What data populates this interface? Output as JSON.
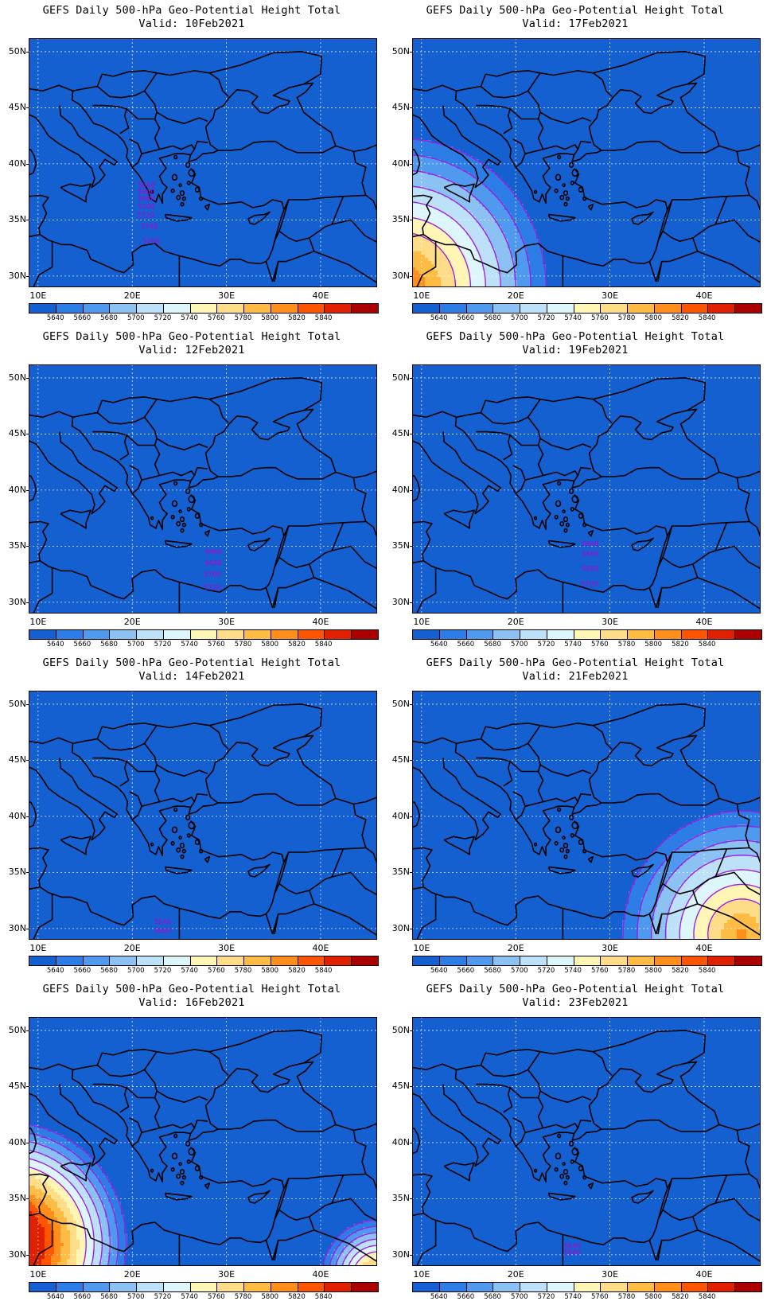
{
  "product_title": "GEFS Daily 500-hPa Geo-Potential Height Total",
  "valid_prefix": "Valid:",
  "panels": [
    {
      "id": "p1",
      "valid_date": "10Feb2021",
      "kind": "shifted",
      "params": {
        "a": 160,
        "b": 3.2,
        "c": 0.5,
        "ch": -160,
        "start": 5640,
        "step": 20,
        "count": 10
      },
      "contour_labels": [
        {
          "text": "5640",
          "x": 21.5,
          "y": 37.9
        },
        {
          "text": "5660",
          "x": 21.5,
          "y": 37.3
        },
        {
          "text": "5680",
          "x": 21.5,
          "y": 36.7
        },
        {
          "text": "5700",
          "x": 21.5,
          "y": 36.0
        },
        {
          "text": "5720",
          "x": 21.4,
          "y": 35.2
        },
        {
          "text": "5740",
          "x": 21.8,
          "y": 34.2
        },
        {
          "text": "5760",
          "x": 22.0,
          "y": 32.9
        }
      ]
    },
    {
      "id": "p2",
      "valid_date": "17Feb2021",
      "kind": "radial",
      "params": {
        "cx": 8,
        "cy": 29,
        "r0": 13.6,
        "dr": 1.6,
        "start": 5640,
        "step": 20,
        "count": 7
      },
      "contour_labels": []
    },
    {
      "id": "p3",
      "valid_date": "12Feb2021",
      "kind": "shifted",
      "params": {
        "a": 130,
        "b": 3.0,
        "c": 0.16,
        "ch": -20,
        "start": 5640,
        "step": 20,
        "count": 8
      },
      "contour_labels": [
        {
          "text": "5660",
          "x": 28.6,
          "y": 34.3
        },
        {
          "text": "5680",
          "x": 28.6,
          "y": 33.3
        },
        {
          "text": "5700",
          "x": 28.5,
          "y": 32.3
        },
        {
          "text": "5720",
          "x": 28.5,
          "y": 31.1
        }
      ]
    },
    {
      "id": "p4",
      "valid_date": "19Feb2021",
      "kind": "shifted",
      "params": {
        "a": 106,
        "b": 3.0,
        "c": 0.15,
        "ch": -68,
        "start": 5640,
        "step": 20,
        "count": 5
      },
      "contour_labels": [
        {
          "text": "5640",
          "x": 27.9,
          "y": 35.0
        },
        {
          "text": "5660",
          "x": 27.9,
          "y": 34.1
        },
        {
          "text": "5680",
          "x": 27.9,
          "y": 32.8
        },
        {
          "text": "5700",
          "x": 27.8,
          "y": 31.4
        }
      ]
    },
    {
      "id": "p5",
      "valid_date": "14Feb2021",
      "kind": "shifted",
      "params": {
        "a": 148,
        "b": 3.0,
        "c": 0.16,
        "ch": -40,
        "start": 5640,
        "step": 20,
        "count": 6
      },
      "contour_labels": [
        {
          "text": "5640",
          "x": 23.2,
          "y": 30.4
        },
        {
          "text": "5660",
          "x": 23.2,
          "y": 29.6
        }
      ]
    },
    {
      "id": "p6",
      "valid_date": "21Feb2021",
      "kind": "radial",
      "params": {
        "cx": 44,
        "cy": 29.5,
        "r0": 11.1,
        "dr": 1.5,
        "start": 5640,
        "step": 20,
        "count": 7
      },
      "contour_labels": []
    },
    {
      "id": "p7",
      "valid_date": "16Feb2021",
      "kind": "combo",
      "params": {
        "cx": 7,
        "cy": 31,
        "r0": 11.5,
        "dr": 0.85,
        "cx2": 46,
        "cy2": 28,
        "r02": 5.2,
        "dr2": 0.65,
        "start": 5640,
        "step": 20,
        "count": 6
      },
      "contour_labels": []
    },
    {
      "id": "p8",
      "valid_date": "23Feb2021",
      "kind": "shifted",
      "params": {
        "a": 162,
        "b": 3.0,
        "c": 0.13,
        "ch": -120,
        "start": 5640,
        "step": 20,
        "count": 5
      },
      "contour_labels": [
        {
          "text": "5640",
          "x": 26.0,
          "y": 30.6
        },
        {
          "text": "5660",
          "x": 26.0,
          "y": 30.0
        }
      ]
    }
  ],
  "axes": {
    "lat_labels": [
      "30N",
      "35N",
      "40N",
      "45N",
      "50N"
    ],
    "lat_values": [
      30,
      35,
      40,
      45,
      50
    ],
    "lon_labels": [
      "10E",
      "20E",
      "30E",
      "40E"
    ],
    "lon_values": [
      10,
      20,
      30,
      40
    ],
    "lon_range": [
      9,
      46
    ],
    "lat_range": [
      29,
      51.2
    ],
    "grid": true
  },
  "colorbar": {
    "labels": [
      "5640",
      "5660",
      "5680",
      "5700",
      "5720",
      "5740",
      "5760",
      "5780",
      "5800",
      "5820",
      "5840"
    ],
    "colors": [
      "#1560d0",
      "#2d7de6",
      "#4f9aee",
      "#8cc1f4",
      "#bde1f8",
      "#dcf6fb",
      "#fff6b5",
      "#ffdc87",
      "#ffbc45",
      "#ff8e1a",
      "#ff5500",
      "#e12000",
      "#aa0000"
    ]
  },
  "contour_color": "#a020e0",
  "coast_color": "#000000"
}
